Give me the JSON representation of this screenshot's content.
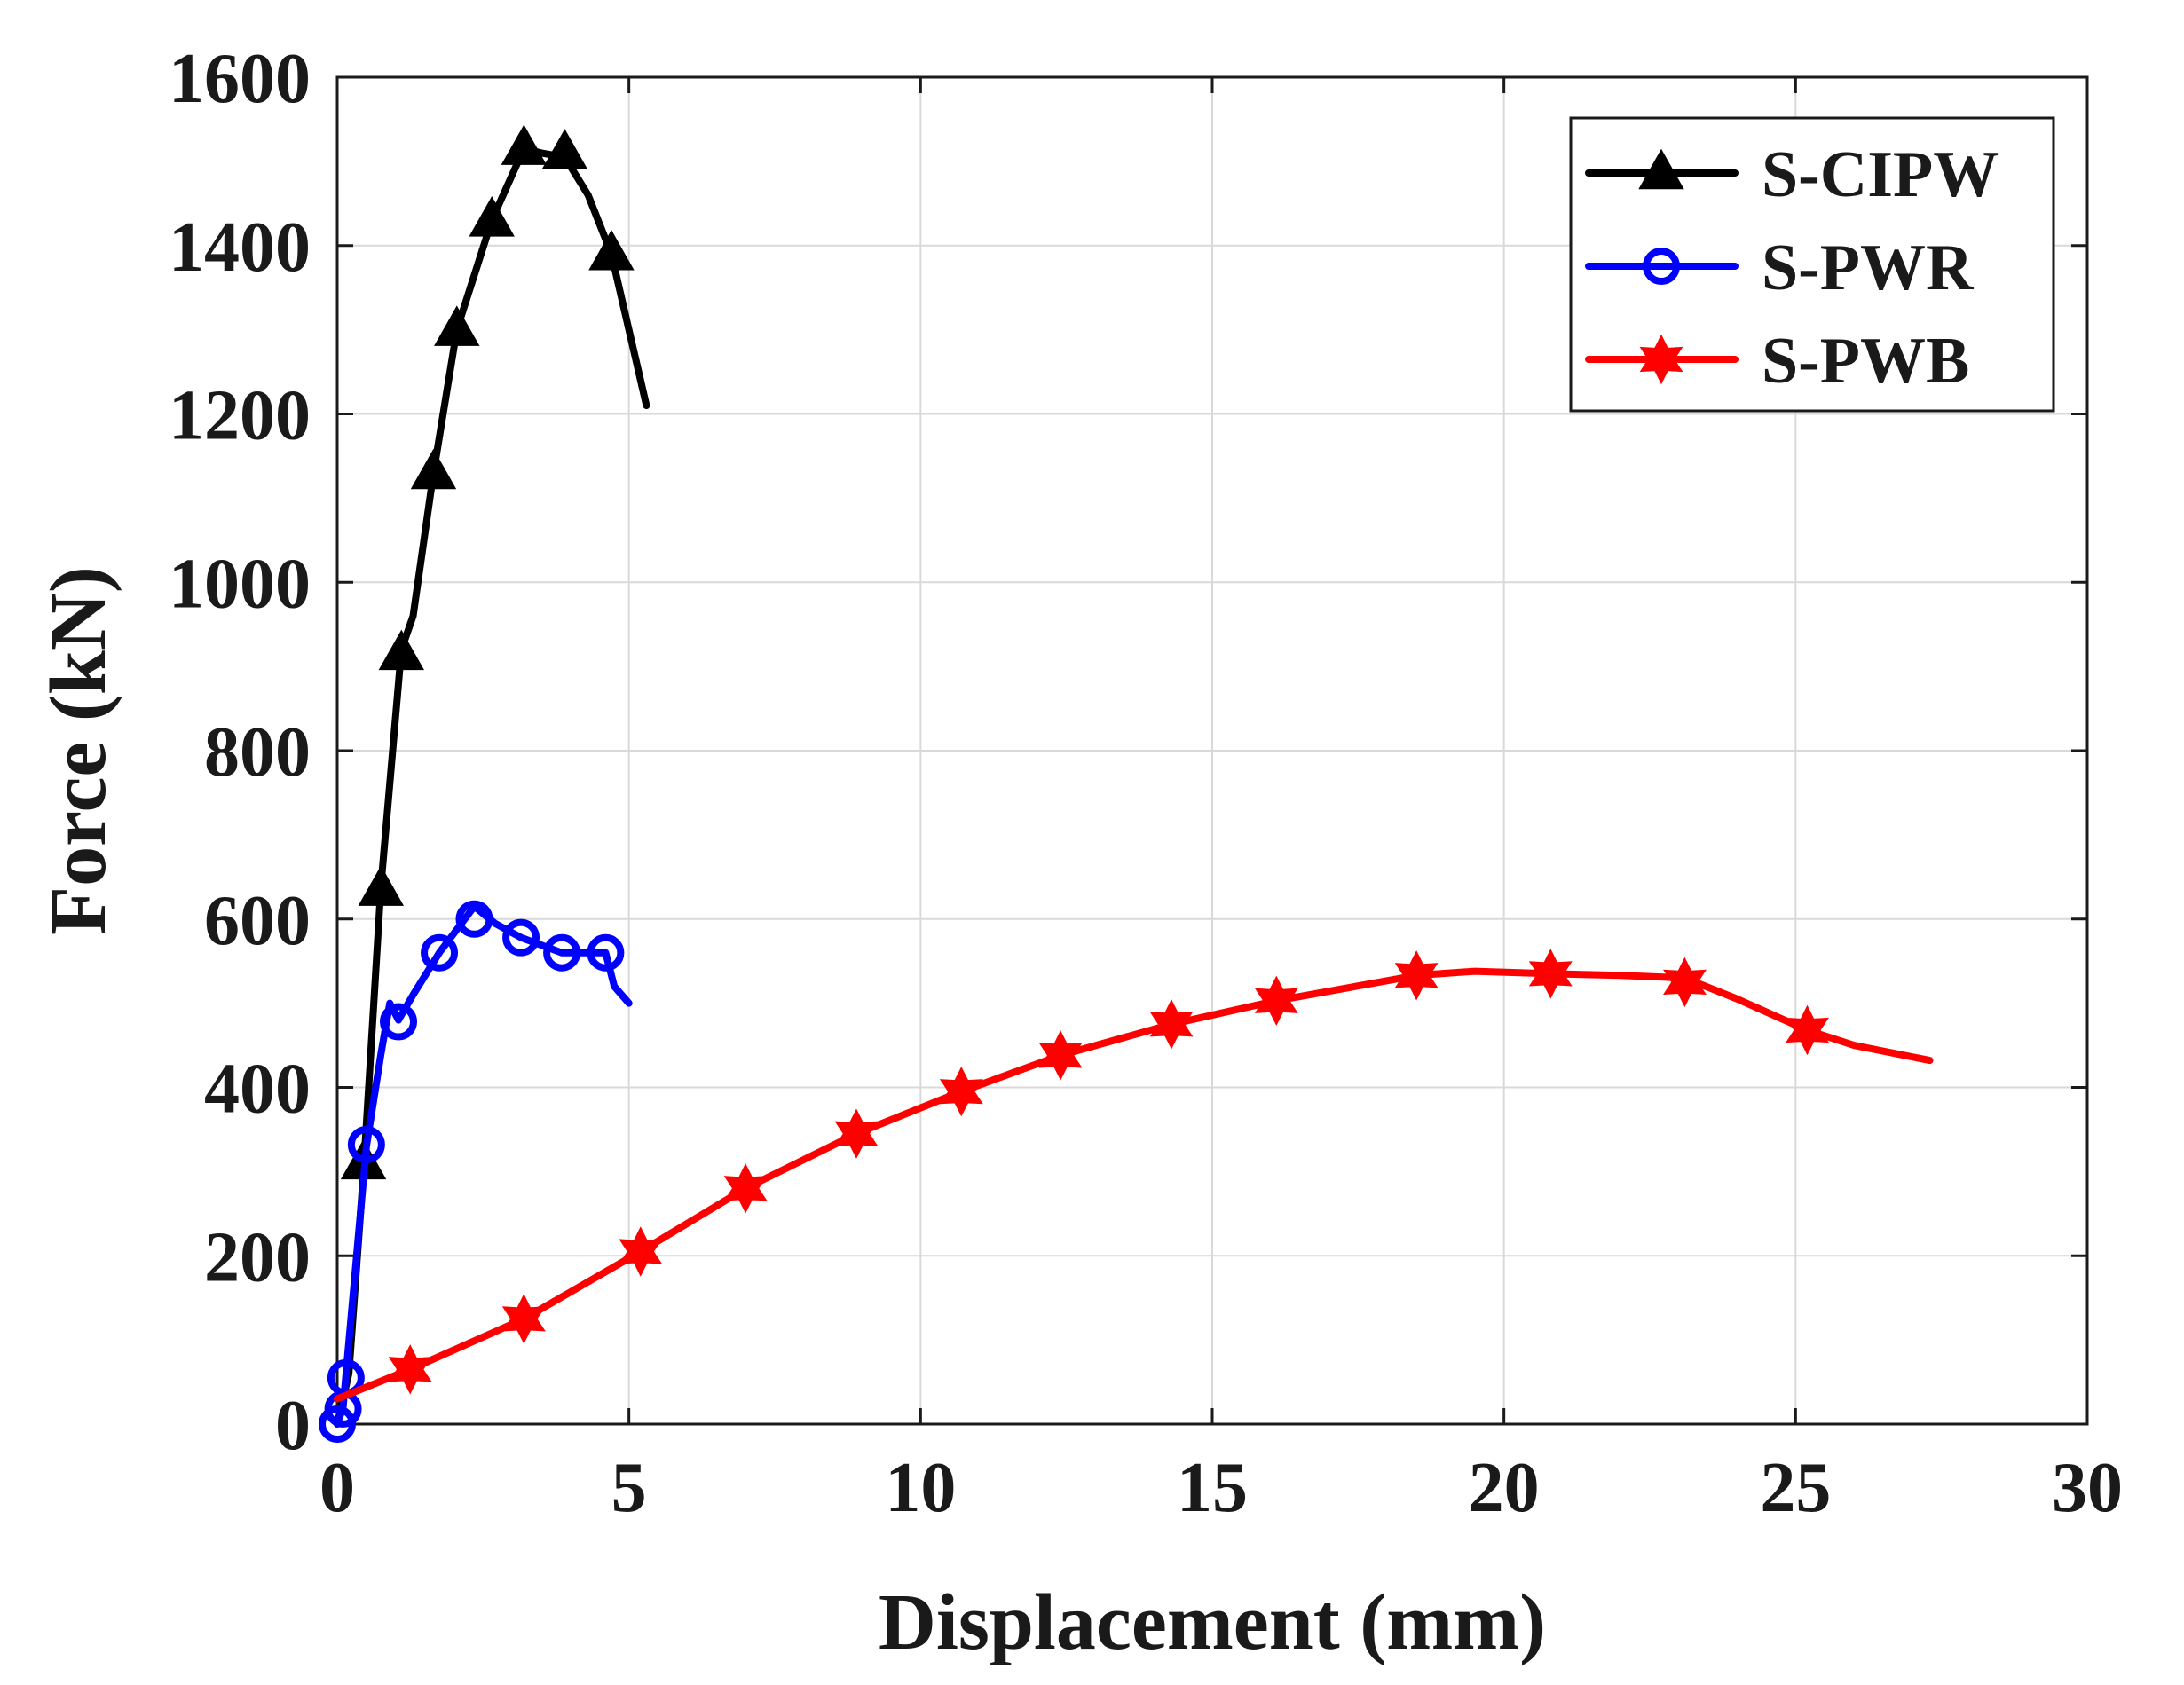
{
  "chart_data": {
    "type": "line",
    "title": "",
    "xlabel": "Displacement (mm)",
    "ylabel": "Force (kN)",
    "xlim": [
      0,
      30
    ],
    "ylim": [
      0,
      1600
    ],
    "xticks": [
      0,
      5,
      10,
      15,
      20,
      25,
      30
    ],
    "xtick_labels": [
      "0",
      "5",
      "10",
      "15",
      "20",
      "25",
      "30"
    ],
    "yticks": [
      0,
      200,
      400,
      600,
      800,
      1000,
      1200,
      1400,
      1600
    ],
    "ytick_labels": [
      "0",
      "200",
      "400",
      "600",
      "800",
      "1000",
      "1200",
      "1400",
      "1600"
    ],
    "grid": true,
    "legend_position": "top-right",
    "series": [
      {
        "name": "S-CIPW",
        "color": "#000000",
        "marker": "triangle",
        "line": [
          [
            0,
            0
          ],
          [
            0.2,
            60
          ],
          [
            0.45,
            300
          ],
          [
            0.75,
            640
          ],
          [
            1.1,
            920
          ],
          [
            1.3,
            960
          ],
          [
            1.65,
            1130
          ],
          [
            2.05,
            1300
          ],
          [
            2.65,
            1430
          ],
          [
            3.2,
            1515
          ],
          [
            3.5,
            1510
          ],
          [
            3.9,
            1505
          ],
          [
            4.3,
            1460
          ],
          [
            4.7,
            1390
          ],
          [
            5.3,
            1210
          ]
        ],
        "markers": [
          [
            0.45,
            310
          ],
          [
            0.75,
            635
          ],
          [
            1.1,
            915
          ],
          [
            1.65,
            1130
          ],
          [
            2.05,
            1300
          ],
          [
            2.65,
            1430
          ],
          [
            3.2,
            1515
          ],
          [
            3.9,
            1510
          ],
          [
            4.7,
            1390
          ]
        ]
      },
      {
        "name": "S-PWR",
        "color": "#0000ff",
        "marker": "circle",
        "line": [
          [
            0,
            0
          ],
          [
            0.1,
            20
          ],
          [
            0.15,
            60
          ],
          [
            0.5,
            330
          ],
          [
            0.75,
            440
          ],
          [
            0.9,
            500
          ],
          [
            1.05,
            480
          ],
          [
            1.3,
            510
          ],
          [
            1.75,
            560
          ],
          [
            2.35,
            615
          ],
          [
            2.7,
            595
          ],
          [
            3.15,
            578
          ],
          [
            3.85,
            560
          ],
          [
            4.6,
            560
          ],
          [
            4.75,
            520
          ],
          [
            5.0,
            500
          ]
        ],
        "markers": [
          [
            0,
            0
          ],
          [
            0.1,
            18
          ],
          [
            0.15,
            55
          ],
          [
            0.5,
            332
          ],
          [
            1.05,
            478
          ],
          [
            1.75,
            560
          ],
          [
            2.35,
            600
          ],
          [
            3.15,
            578
          ],
          [
            3.85,
            560
          ],
          [
            4.6,
            560
          ]
        ]
      },
      {
        "name": "S-PWB",
        "color": "#ff0000",
        "marker": "hexagram",
        "line": [
          [
            0,
            30
          ],
          [
            1.25,
            65
          ],
          [
            3.2,
            125
          ],
          [
            5.2,
            205
          ],
          [
            7.0,
            280
          ],
          [
            8.9,
            345
          ],
          [
            10.7,
            395
          ],
          [
            12.4,
            438
          ],
          [
            14.3,
            475
          ],
          [
            16.1,
            503
          ],
          [
            18.5,
            533
          ],
          [
            19.5,
            538
          ],
          [
            20.8,
            535
          ],
          [
            22.0,
            533
          ],
          [
            23.1,
            530
          ],
          [
            24.0,
            505
          ],
          [
            25.2,
            468
          ],
          [
            26.0,
            450
          ],
          [
            27.3,
            432
          ]
        ],
        "markers": [
          [
            1.25,
            65
          ],
          [
            3.2,
            125
          ],
          [
            5.2,
            205
          ],
          [
            7.0,
            280
          ],
          [
            8.9,
            345
          ],
          [
            10.7,
            395
          ],
          [
            12.4,
            438
          ],
          [
            14.3,
            475
          ],
          [
            16.1,
            503
          ],
          [
            18.5,
            533
          ],
          [
            20.8,
            535
          ],
          [
            23.1,
            525
          ],
          [
            25.2,
            468
          ]
        ]
      }
    ]
  }
}
